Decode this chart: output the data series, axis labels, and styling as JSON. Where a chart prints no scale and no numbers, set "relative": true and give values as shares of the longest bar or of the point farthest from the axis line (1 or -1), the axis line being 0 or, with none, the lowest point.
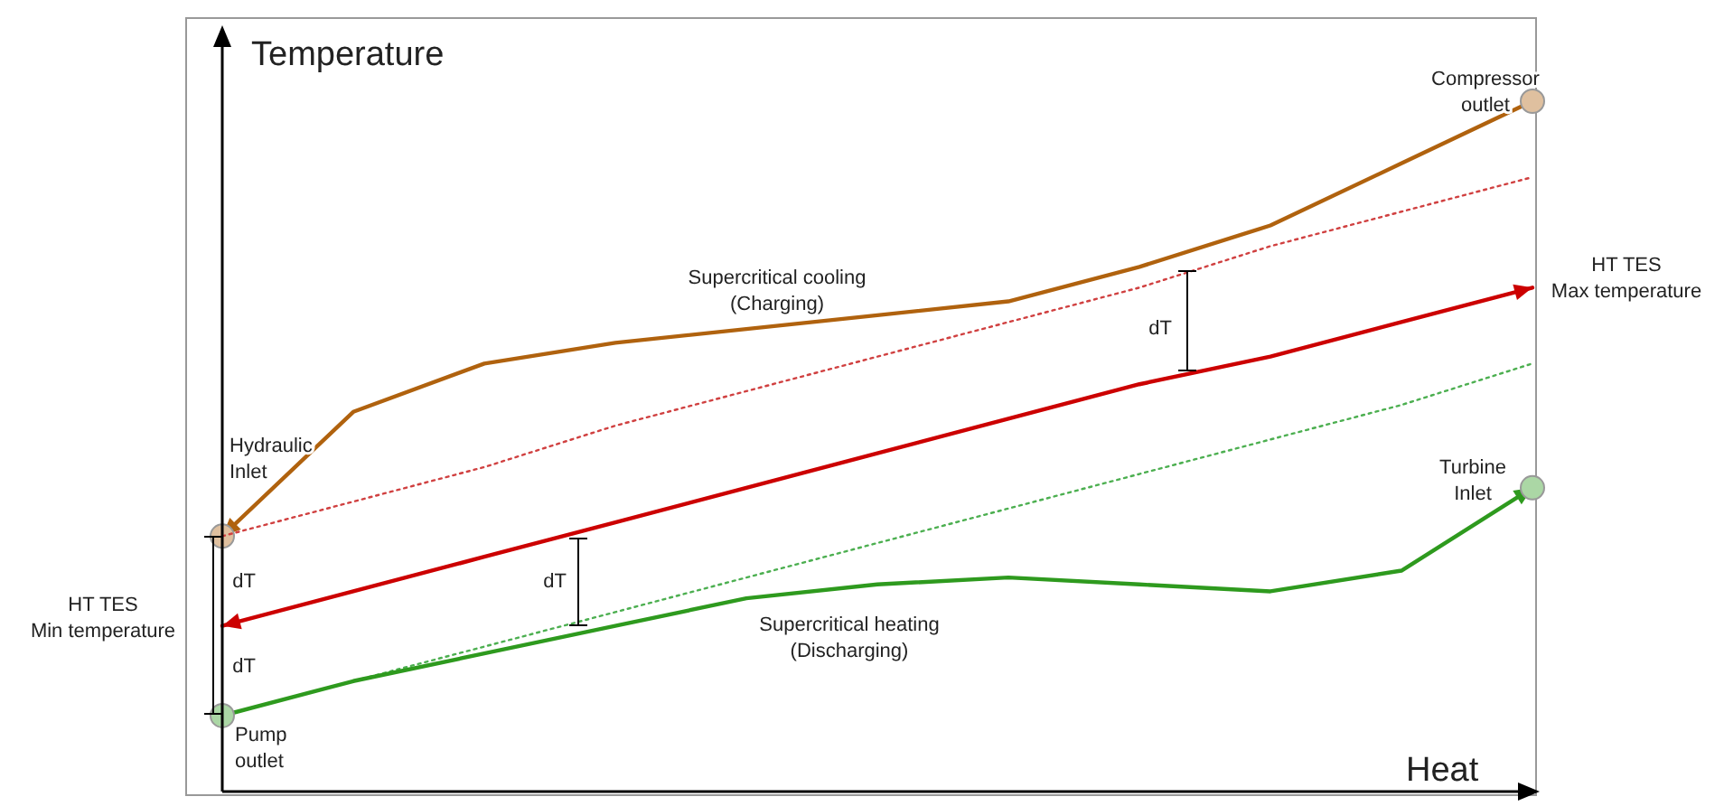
{
  "chart_data": {
    "type": "line",
    "relative": true,
    "xlabel": "Heat",
    "ylabel": "Temperature",
    "grid": false,
    "categories": [
      null,
      null,
      null,
      null,
      null,
      null,
      null,
      null,
      null,
      null,
      null
    ],
    "series": [
      {
        "name": "Supercritical cooling\n(Charging)",
        "color": "#b0620e",
        "line_style": "solid",
        "marker": "none",
        "values": [
          0.37,
          0.55,
          0.62,
          0.65,
          0.67,
          0.69,
          0.71,
          0.76,
          0.82,
          0.91,
          1.0
        ]
      },
      {
        "color": "#d04040",
        "line_style": "dotted",
        "marker": "none",
        "values": [
          0.37,
          0.42,
          0.47,
          0.53,
          0.58,
          0.63,
          0.68,
          0.73,
          0.79,
          0.84,
          0.89
        ]
      },
      {
        "color": "#cc0000",
        "line_style": "solid",
        "marker": "none",
        "values": [
          0.24,
          0.29,
          0.34,
          0.39,
          0.44,
          0.49,
          0.54,
          0.59,
          0.63,
          0.68,
          0.73
        ]
      },
      {
        "color": "#4caf50",
        "line_style": "dotted",
        "marker": "none",
        "values": [
          0.11,
          0.16,
          0.21,
          0.26,
          0.31,
          0.36,
          0.41,
          0.46,
          0.51,
          0.56,
          0.62
        ]
      },
      {
        "name": "Supercritical heating\n(Discharging)",
        "color": "#2e9a1e",
        "line_style": "solid",
        "marker": "none",
        "values": [
          0.11,
          0.16,
          0.2,
          0.24,
          0.28,
          0.3,
          0.31,
          0.3,
          0.29,
          0.32,
          0.44
        ]
      }
    ],
    "annotations": [
      "Compressor\noutlet",
      "HT TES\nMax temperature",
      "Hydraulic\nInlet",
      "HT TES\nMin temperature",
      "Turbine\nInlet",
      "Pump\noutlet",
      "dT",
      "dT",
      "dT",
      "dT"
    ]
  }
}
